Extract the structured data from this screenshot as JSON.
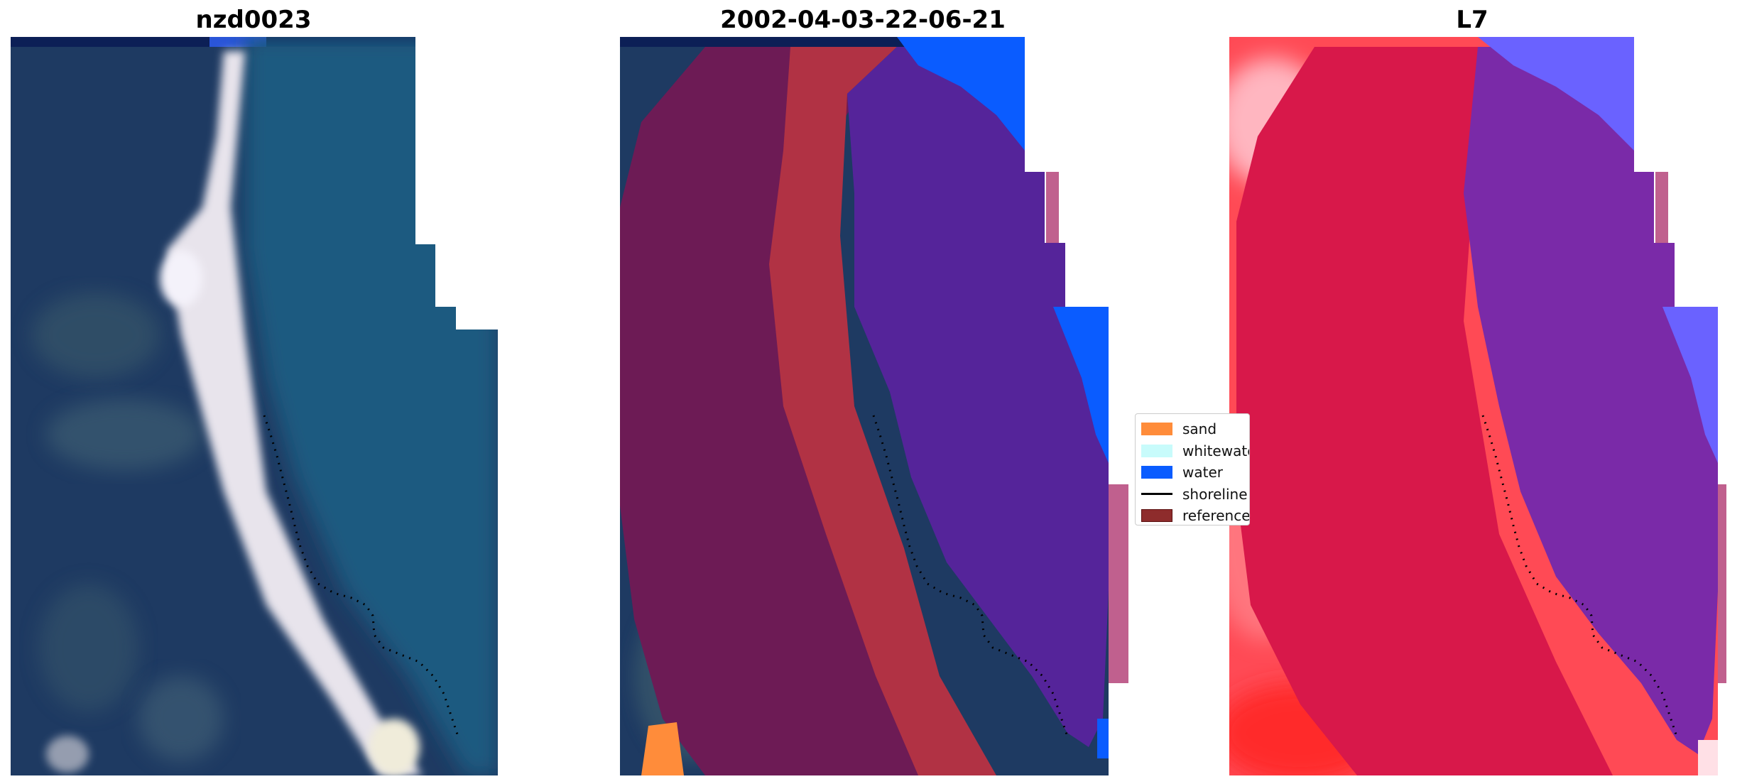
{
  "panels": [
    {
      "title": "nzd0023"
    },
    {
      "title": "2002-04-03-22-06-21"
    },
    {
      "title": "L7"
    }
  ],
  "legend": {
    "items": [
      {
        "label": "sand",
        "color": "#ff8c3a",
        "kind": "patch"
      },
      {
        "label": "whitewater",
        "color": "#c8fbfb",
        "kind": "patch"
      },
      {
        "label": "water",
        "color": "#0a5cff",
        "kind": "patch"
      },
      {
        "label": "shoreline",
        "color": "#000000",
        "kind": "line"
      },
      {
        "label": "reference",
        "color": "#8e2c2c",
        "kind": "patch-outlined"
      }
    ]
  },
  "colors": {
    "ocean_blue": "#1f5a80",
    "land_navy": "#1e3a62",
    "beach_white": "#e8e4ec",
    "class_water_purple": "#55249a",
    "class_land_maroon": "#6d1b55",
    "class_sand_red": "#b13244",
    "bright_blue": "#0a5cff",
    "l7_red": "#d8184a",
    "l7_purple": "#7a2aa8",
    "l7_bright_red": "#ff2a2a"
  }
}
